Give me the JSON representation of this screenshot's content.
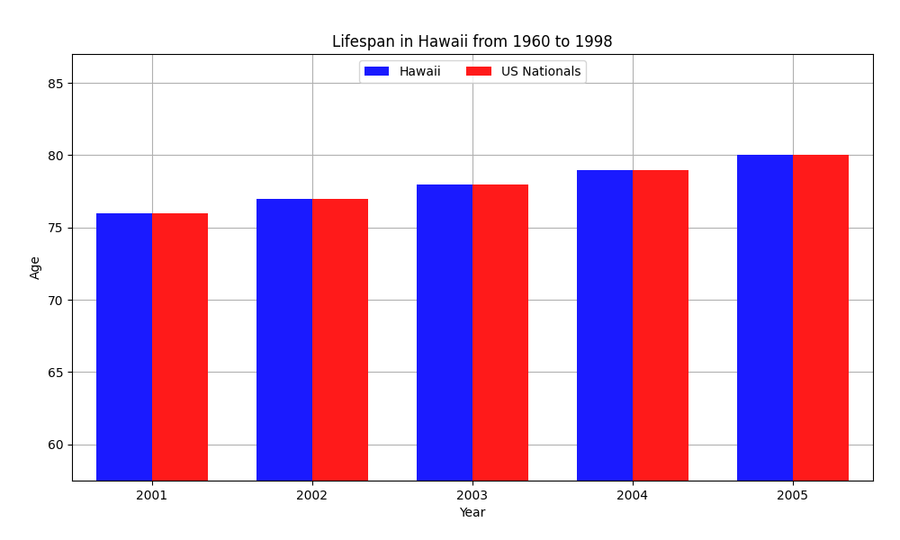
{
  "chart_data": {
    "type": "bar",
    "title": "Lifespan in Hawaii from 1960 to 1998",
    "x_label": "Year",
    "y_label": "Age",
    "categories": [
      "2001",
      "2002",
      "2003",
      "2004",
      "2005"
    ],
    "series": [
      {
        "name": "Hawaii",
        "color": "#1a1aff",
        "values": [
          76,
          77,
          78,
          79,
          80
        ]
      },
      {
        "name": "US Nationals",
        "color": "#ff1a1a",
        "values": [
          76,
          77,
          78,
          79,
          80
        ]
      }
    ],
    "ylim": [
      57.5,
      87
    ],
    "yticks": [
      60,
      65,
      70,
      75,
      80,
      85
    ],
    "grid": true,
    "legend": "upper center"
  }
}
